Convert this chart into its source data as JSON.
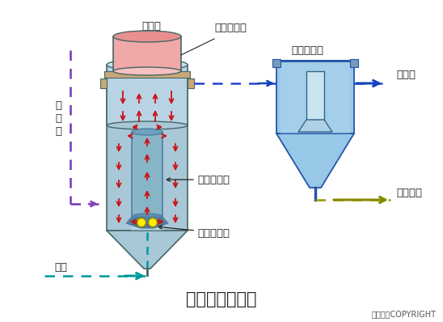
{
  "title": "气流动力流化床",
  "copyright": "东方仿真COPYRIGHT",
  "labels": {
    "sulfur_bed": "硫化床",
    "carrier_separation": "载体分离区",
    "raw_sewage_1": "原",
    "raw_sewage_2": "污",
    "raw_sewage_3": "水",
    "secondary_sedimentation": "二次沉淀齿",
    "treated_water": "处理水",
    "carrier_descent": "载体下降区",
    "sludge_discharge": "污泥排放",
    "transport_mixing": "输送混合管",
    "air": "空气"
  },
  "colors": {
    "background": "#ffffff",
    "main_vessel_body": "#a8c8d8",
    "main_vessel_light": "#c0dce8",
    "sulfur_bed_fill": "#f0a8a8",
    "sulfur_bed_top": "#e89898",
    "separator_region": "#b8d4e4",
    "separator_light": "#cce0ee",
    "inner_tube_fill": "#88b4c8",
    "inner_tube_dark": "#5080a0",
    "secondary_tank_fill": "#98c8e8",
    "secondary_tank_light": "#b8daf0",
    "arrow_red": "#cc1111",
    "arrow_blue": "#1144bb",
    "arrow_teal": "#009999",
    "arrow_purple": "#8844bb",
    "arrow_olive": "#888800",
    "dashed_blue": "#2244cc",
    "dashed_purple": "#7733bb",
    "dashed_teal": "#009999",
    "yellow_circle": "#ffee00",
    "dark_gray": "#333333",
    "text_dark": "#222222",
    "edge_gray": "#446666",
    "edge_blue": "#2255aa",
    "tan_color": "#c8a878"
  }
}
